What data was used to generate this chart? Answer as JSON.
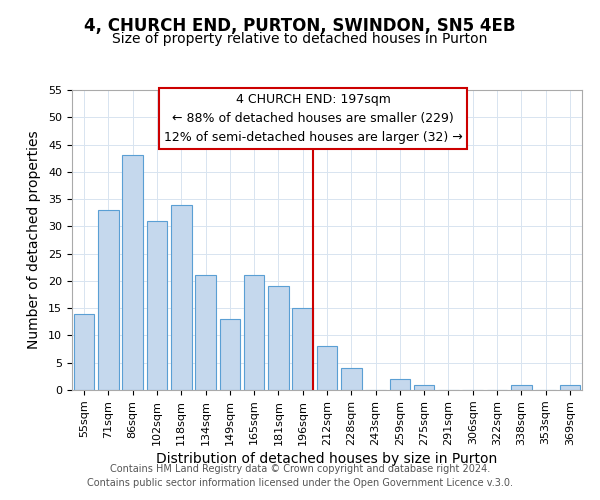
{
  "title": "4, CHURCH END, PURTON, SWINDON, SN5 4EB",
  "subtitle": "Size of property relative to detached houses in Purton",
  "xlabel": "Distribution of detached houses by size in Purton",
  "ylabel": "Number of detached properties",
  "bin_labels": [
    "55sqm",
    "71sqm",
    "86sqm",
    "102sqm",
    "118sqm",
    "134sqm",
    "149sqm",
    "165sqm",
    "181sqm",
    "196sqm",
    "212sqm",
    "228sqm",
    "243sqm",
    "259sqm",
    "275sqm",
    "291sqm",
    "306sqm",
    "322sqm",
    "338sqm",
    "353sqm",
    "369sqm"
  ],
  "bar_values": [
    14,
    33,
    43,
    31,
    34,
    21,
    13,
    21,
    19,
    15,
    8,
    4,
    0,
    2,
    1,
    0,
    0,
    0,
    1,
    0,
    1
  ],
  "bar_color": "#c5d8ed",
  "bar_edge_color": "#5a9fd4",
  "vline_x_index": 9,
  "vline_color": "#cc0000",
  "ylim": [
    0,
    55
  ],
  "yticks": [
    0,
    5,
    10,
    15,
    20,
    25,
    30,
    35,
    40,
    45,
    50,
    55
  ],
  "annotation_title": "4 CHURCH END: 197sqm",
  "annotation_line1": "← 88% of detached houses are smaller (229)",
  "annotation_line2": "12% of semi-detached houses are larger (32) →",
  "annotation_box_color": "#ffffff",
  "annotation_box_edge": "#cc0000",
  "footer_line1": "Contains HM Land Registry data © Crown copyright and database right 2024.",
  "footer_line2": "Contains public sector information licensed under the Open Government Licence v.3.0.",
  "title_fontsize": 12,
  "subtitle_fontsize": 10,
  "axis_label_fontsize": 10,
  "tick_fontsize": 8,
  "annotation_fontsize": 9,
  "footer_fontsize": 7,
  "grid_color": "#d8e4f0"
}
